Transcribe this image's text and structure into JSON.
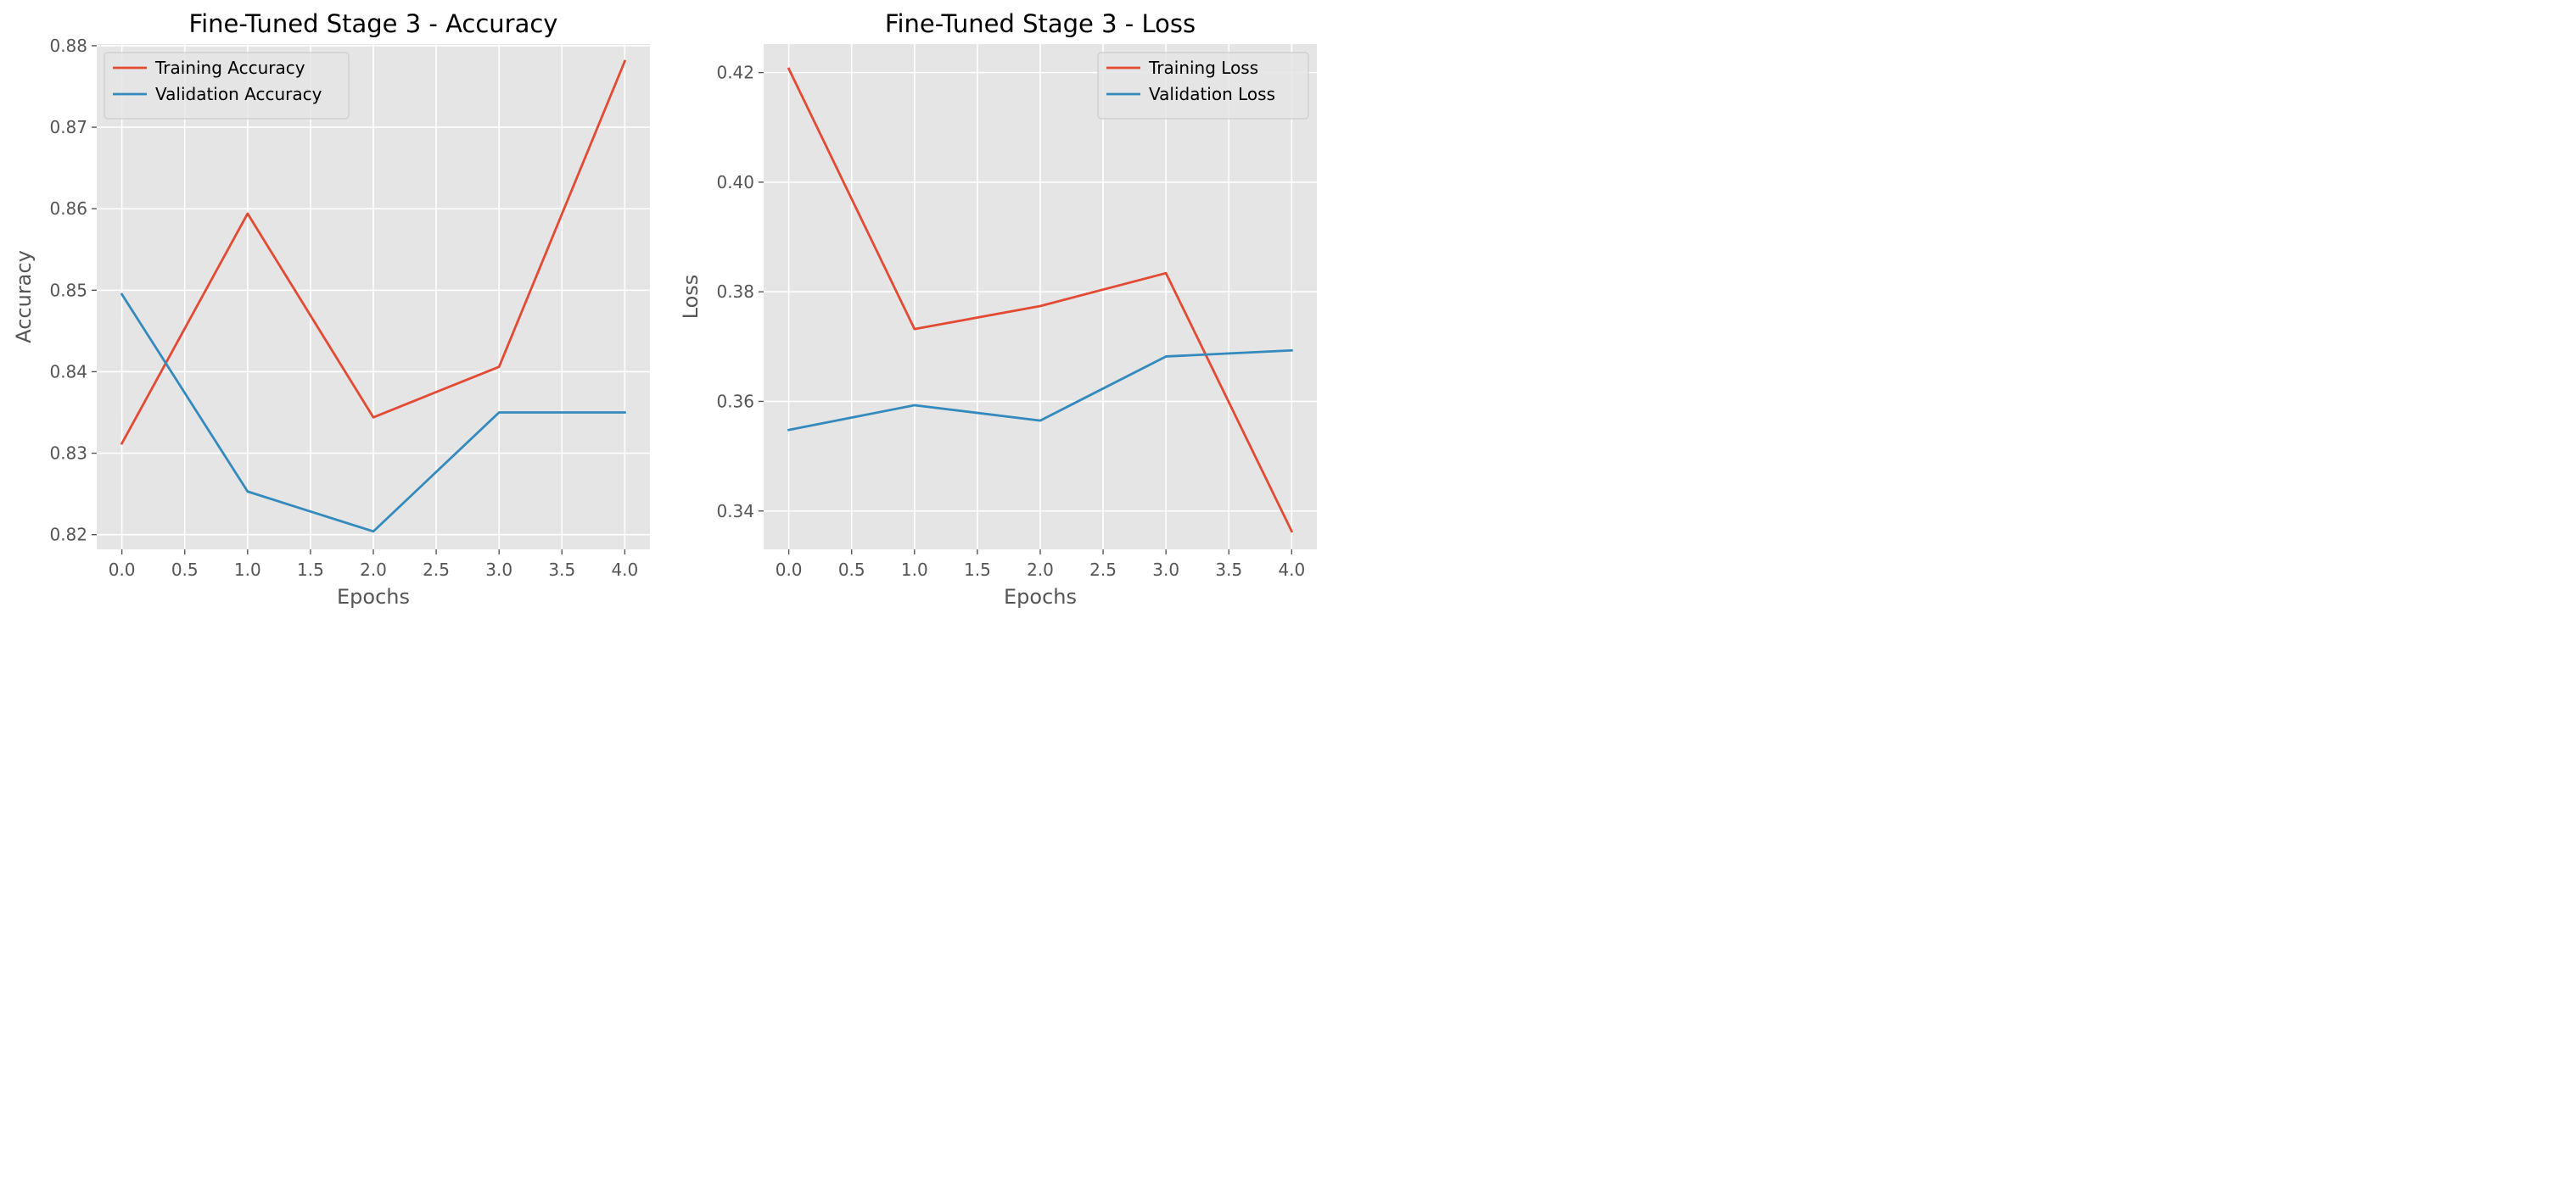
{
  "chart_data": [
    {
      "type": "line",
      "title": "Fine-Tuned Stage 3 - Accuracy",
      "xlabel": "Epochs",
      "ylabel": "Accuracy",
      "x": [
        0,
        1,
        2,
        3,
        4
      ],
      "xlim": [
        -0.2,
        4.2
      ],
      "ylim": [
        0.8182,
        0.8802
      ],
      "xticks": [
        0.0,
        0.5,
        1.0,
        1.5,
        2.0,
        2.5,
        3.0,
        3.5,
        4.0
      ],
      "xtick_labels": [
        "0.0",
        "0.5",
        "1.0",
        "1.5",
        "2.0",
        "2.5",
        "3.0",
        "3.5",
        "4.0"
      ],
      "yticks": [
        0.82,
        0.83,
        0.84,
        0.85,
        0.86,
        0.87,
        0.88
      ],
      "ytick_labels": [
        "0.82",
        "0.83",
        "0.84",
        "0.85",
        "0.86",
        "0.87",
        "0.88"
      ],
      "grid": true,
      "legend_position": "top-left",
      "series": [
        {
          "name": "Training Accuracy",
          "color": "#E24A33",
          "values": [
            0.8312,
            0.8594,
            0.8344,
            0.8406,
            0.8781
          ]
        },
        {
          "name": "Validation Accuracy",
          "color": "#348ABD",
          "values": [
            0.8495,
            0.8253,
            0.8204,
            0.835,
            0.835
          ]
        }
      ]
    },
    {
      "type": "line",
      "title": "Fine-Tuned Stage 3 - Loss",
      "xlabel": "Epochs",
      "ylabel": "Loss",
      "x": [
        0,
        1,
        2,
        3,
        4
      ],
      "xlim": [
        -0.2,
        4.2
      ],
      "ylim": [
        0.333,
        0.4252
      ],
      "xticks": [
        0.0,
        0.5,
        1.0,
        1.5,
        2.0,
        2.5,
        3.0,
        3.5,
        4.0
      ],
      "xtick_labels": [
        "0.0",
        "0.5",
        "1.0",
        "1.5",
        "2.0",
        "2.5",
        "3.0",
        "3.5",
        "4.0"
      ],
      "yticks": [
        0.34,
        0.36,
        0.38,
        0.4,
        0.42
      ],
      "ytick_labels": [
        "0.34",
        "0.36",
        "0.38",
        "0.40",
        "0.42"
      ],
      "grid": true,
      "legend_position": "top-right",
      "series": [
        {
          "name": "Training Loss",
          "color": "#E24A33",
          "values": [
            0.4207,
            0.3732,
            0.3774,
            0.3834,
            0.3363
          ]
        },
        {
          "name": "Validation Loss",
          "color": "#348ABD",
          "values": [
            0.3548,
            0.3593,
            0.3565,
            0.3682,
            0.3693
          ]
        }
      ]
    }
  ],
  "style": {
    "background": "#E5E5E5",
    "grid_color": "#FFFFFF",
    "tick_color": "#555555",
    "legend_background": "#E5E5E5",
    "legend_border": "#CCCCCC"
  }
}
